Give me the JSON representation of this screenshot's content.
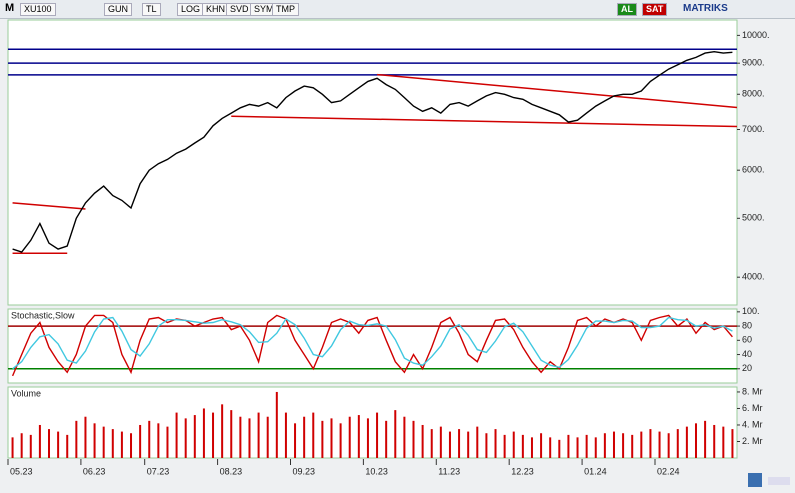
{
  "toolbar": {
    "menu": "M",
    "symbol": "XU100",
    "buttons": [
      "GUN",
      "TL",
      "LOG",
      "KHN",
      "SVD",
      "SYM",
      "TMP"
    ],
    "buy": "AL",
    "sell": "SAT",
    "brand": "MATRIKS"
  },
  "chart_data": [
    {
      "type": "line",
      "log_scale": true,
      "categories": [
        "05.23",
        null,
        null,
        null,
        null,
        null,
        null,
        null,
        "06.23",
        null,
        null,
        null,
        null,
        null,
        null,
        "07.23",
        null,
        null,
        null,
        null,
        null,
        null,
        null,
        "08.23",
        null,
        null,
        null,
        null,
        null,
        null,
        null,
        "09.23",
        null,
        null,
        null,
        null,
        null,
        null,
        null,
        "10.23",
        null,
        null,
        null,
        null,
        null,
        null,
        null,
        "11.23",
        null,
        null,
        null,
        null,
        null,
        null,
        null,
        "12.23",
        null,
        null,
        null,
        null,
        null,
        null,
        null,
        "01.24",
        null,
        null,
        null,
        null,
        null,
        null,
        null,
        "02.24",
        null,
        null,
        null,
        null,
        null,
        null,
        null,
        null
      ],
      "series": [
        {
          "color": "#000000",
          "values": [
            4450,
            4400,
            4600,
            4900,
            4550,
            4450,
            4500,
            5000,
            5300,
            5500,
            5650,
            5450,
            5350,
            5200,
            5700,
            6000,
            6150,
            6250,
            6400,
            6500,
            6650,
            6800,
            7100,
            7300,
            7450,
            7600,
            7700,
            7650,
            7750,
            7600,
            7900,
            8100,
            8250,
            8200,
            8000,
            7750,
            7800,
            8000,
            8200,
            8400,
            8500,
            8300,
            8150,
            7900,
            7650,
            7500,
            7600,
            7450,
            7700,
            7750,
            7650,
            7800,
            7950,
            8050,
            8000,
            7900,
            7850,
            7700,
            7600,
            7500,
            7400,
            7200,
            7250,
            7450,
            7650,
            7800,
            7950,
            8000,
            8000,
            8100,
            8400,
            8600,
            8800,
            8950,
            9100,
            9200,
            9350,
            9400,
            9350,
            9380
          ]
        }
      ],
      "ylim": [
        3600,
        10600
      ],
      "yticks": [
        {
          "value": 4000,
          "label": "4000."
        },
        {
          "value": 5000,
          "label": "5000."
        },
        {
          "value": 6000,
          "label": "6000."
        },
        {
          "value": 7000,
          "label": "7000."
        },
        {
          "value": 8000,
          "label": "8000."
        },
        {
          "value": 9000,
          "label": "9000."
        },
        {
          "value": 10000,
          "label": "10000."
        }
      ],
      "hlines": [
        9490,
        9000,
        8610
      ],
      "hline_colors": [
        "#00008b",
        "#00008b",
        "#00008b"
      ],
      "trendlines": [
        {
          "x": [
            0,
            8
          ],
          "values": [
            5300,
            5180
          ]
        },
        {
          "x": [
            0,
            6
          ],
          "values": [
            4380,
            4380
          ]
        },
        {
          "x": [
            24,
            79.5
          ],
          "values": [
            7360,
            7080
          ]
        },
        {
          "x": [
            40,
            79.5
          ],
          "values": [
            8620,
            7610
          ]
        }
      ],
      "trendline_color": "#d00000"
    },
    {
      "type": "line",
      "title": "Stochastic,Slow",
      "series": [
        {
          "color": "#d00000",
          "values": [
            10,
            40,
            70,
            85,
            50,
            30,
            15,
            40,
            80,
            95,
            95,
            85,
            40,
            15,
            60,
            90,
            92,
            85,
            90,
            88,
            80,
            85,
            90,
            92,
            75,
            80,
            60,
            30,
            85,
            95,
            90,
            60,
            40,
            20,
            50,
            85,
            90,
            85,
            70,
            88,
            92,
            60,
            30,
            15,
            40,
            20,
            50,
            85,
            92,
            70,
            40,
            30,
            60,
            88,
            90,
            75,
            50,
            30,
            15,
            30,
            20,
            50,
            88,
            92,
            80,
            90,
            85,
            90,
            85,
            60,
            88,
            92,
            95,
            80,
            90,
            70,
            85,
            75,
            80,
            65
          ]
        },
        {
          "color": "#40c8e0",
          "values": [
            20,
            30,
            50,
            65,
            68,
            55,
            32,
            28,
            45,
            72,
            90,
            92,
            73,
            47,
            38,
            55,
            80,
            89,
            89,
            88,
            86,
            84,
            85,
            89,
            86,
            82,
            72,
            57,
            58,
            70,
            90,
            82,
            63,
            40,
            37,
            52,
            75,
            87,
            82,
            81,
            83,
            80,
            61,
            35,
            28,
            25,
            37,
            52,
            76,
            82,
            67,
            47,
            43,
            59,
            79,
            84,
            72,
            52,
            32,
            25,
            22,
            33,
            53,
            77,
            87,
            87,
            85,
            88,
            87,
            78,
            78,
            80,
            92,
            89,
            88,
            80,
            82,
            77,
            80,
            73
          ]
        }
      ],
      "ylim": [
        0,
        104
      ],
      "yticks": [
        20,
        40,
        60,
        80,
        {
          "value": 100,
          "label": "100."
        }
      ],
      "hlines": [
        80,
        20
      ],
      "hline_colors": [
        "#a00000",
        "#008000"
      ]
    },
    {
      "type": "bar",
      "title": "Volume",
      "series": [
        {
          "color": "#d00000",
          "values": [
            2.5,
            3,
            2.8,
            4,
            3.5,
            3.2,
            2.8,
            4.5,
            5,
            4.2,
            3.8,
            3.5,
            3.2,
            3,
            4,
            4.5,
            4.2,
            3.8,
            5.5,
            4.8,
            5.2,
            6,
            5.5,
            6.5,
            5.8,
            5,
            4.8,
            5.5,
            5,
            8,
            5.5,
            4.2,
            5,
            5.5,
            4.5,
            4.8,
            4.2,
            5,
            5.2,
            4.8,
            5.5,
            4.5,
            5.8,
            5,
            4.5,
            4,
            3.5,
            3.8,
            3.2,
            3.5,
            3.2,
            3.8,
            3,
            3.5,
            2.8,
            3.2,
            2.8,
            2.5,
            3,
            2.5,
            2.2,
            2.8,
            2.5,
            2.8,
            2.5,
            3,
            3.2,
            3,
            2.8,
            3.2,
            3.5,
            3.2,
            3,
            3.5,
            3.8,
            4.2,
            4.5,
            4,
            3.8,
            3.5
          ]
        }
      ],
      "ylim": [
        0,
        8.6
      ],
      "yticks": [
        {
          "value": 2,
          "label": "2. Mr"
        },
        {
          "value": 4,
          "label": "4. Mr"
        },
        {
          "value": 6,
          "label": "6. Mr"
        },
        {
          "value": 8,
          "label": "8. Mr"
        }
      ]
    }
  ]
}
